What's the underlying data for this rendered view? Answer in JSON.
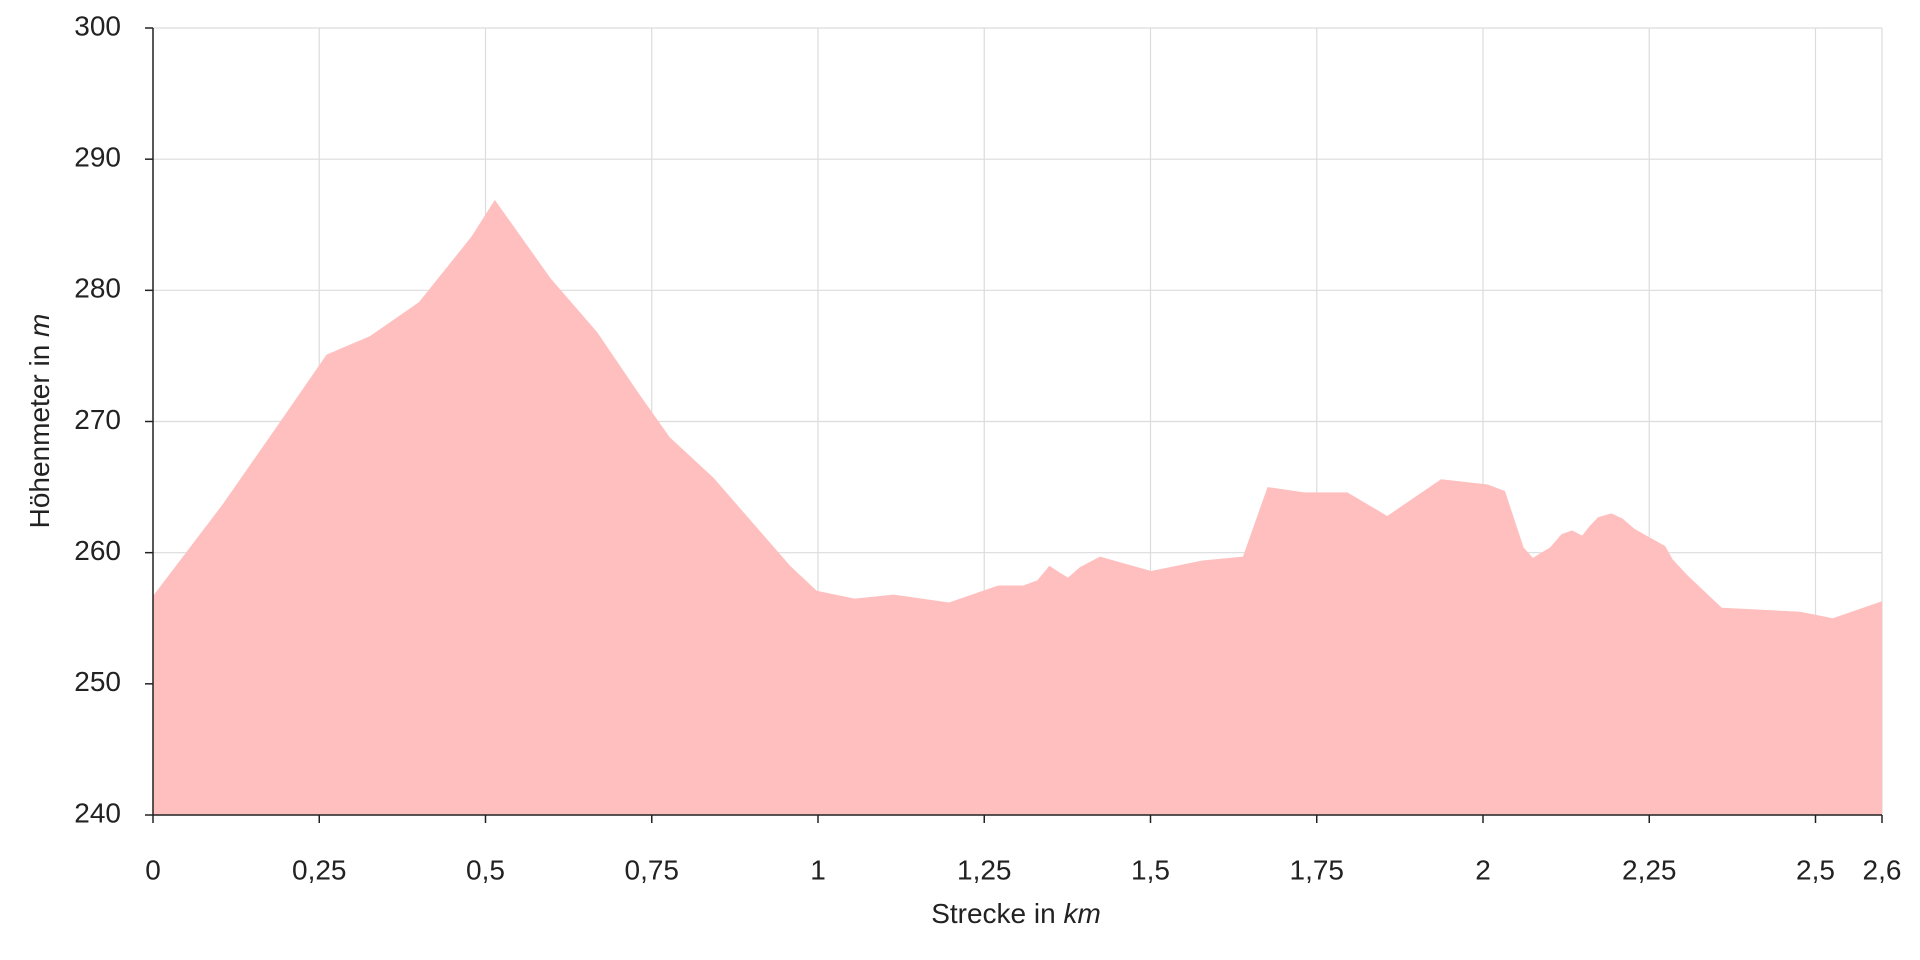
{
  "chart_data": {
    "type": "area",
    "x_label": "Strecke in",
    "x_unit": "km",
    "y_label": "Höhenmeter in",
    "y_unit": "m",
    "color": "#ffbfbf",
    "grid": true,
    "x": [
      0,
      0.105,
      0.197,
      0.261,
      0.326,
      0.4,
      0.479,
      0.514,
      0.598,
      0.668,
      0.731,
      0.777,
      0.843,
      0.958,
      0.998,
      1.055,
      1.114,
      1.197,
      1.271,
      1.309,
      1.33,
      1.348,
      1.363,
      1.376,
      1.394,
      1.424,
      1.501,
      1.578,
      1.639,
      1.676,
      1.731,
      1.796,
      1.856,
      1.937,
      2.007,
      2.033,
      2.061,
      2.075,
      2.101,
      2.118,
      2.134,
      2.149,
      2.16,
      2.173,
      2.193,
      2.21,
      2.228,
      2.274,
      2.285,
      2.307,
      2.359,
      2.477,
      2.526,
      2.6
    ],
    "values": [
      256.7,
      263.7,
      270.4,
      275.1,
      276.5,
      279.1,
      284.1,
      286.9,
      280.9,
      276.8,
      272.1,
      268.8,
      265.7,
      259.0,
      257.1,
      256.5,
      256.8,
      256.2,
      257.5,
      257.5,
      257.9,
      259.0,
      258.5,
      258.1,
      258.9,
      259.7,
      258.6,
      259.4,
      259.7,
      265.0,
      264.6,
      264.6,
      262.8,
      265.6,
      265.2,
      264.7,
      260.4,
      259.6,
      260.4,
      261.4,
      261.7,
      261.3,
      262.0,
      262.7,
      263.0,
      262.6,
      261.8,
      260.5,
      259.5,
      258.3,
      255.8,
      255.5,
      255.0,
      256.3
    ],
    "xlim": [
      0,
      2.6
    ],
    "xticks": [
      0,
      {
        "value": 0.25,
        "label": "0,25"
      },
      {
        "value": 0.5,
        "label": "0,5"
      },
      {
        "value": 0.75,
        "label": "0,75"
      },
      1,
      {
        "value": 1.25,
        "label": "1,25"
      },
      {
        "value": 1.5,
        "label": "1,5"
      },
      {
        "value": 1.75,
        "label": "1,75"
      },
      2,
      {
        "value": 2.25,
        "label": "2,25"
      },
      {
        "value": 2.5,
        "label": "2,5"
      },
      {
        "value": 2.6,
        "label": "2,6"
      }
    ],
    "ylim": [
      240,
      300
    ],
    "yticks": [
      240,
      250,
      260,
      270,
      280,
      290,
      300
    ]
  }
}
